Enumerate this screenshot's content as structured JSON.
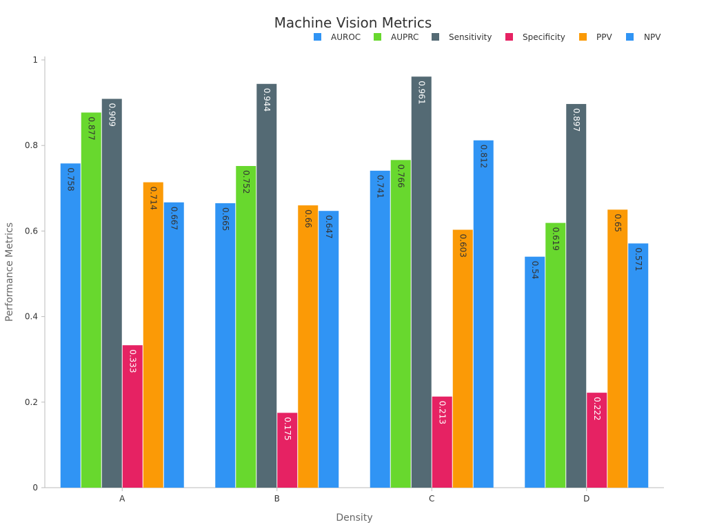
{
  "chart_data": {
    "type": "bar",
    "title": "Machine Vision Metrics",
    "xlabel": "Density",
    "ylabel": "Performance Metrics",
    "categories": [
      "A",
      "B",
      "C",
      "D"
    ],
    "ylim": [
      0,
      1
    ],
    "yticks": [
      0,
      0.2,
      0.4,
      0.6,
      0.8,
      1
    ],
    "ytick_labels": [
      "0",
      "0.2",
      "0.4",
      "0.6",
      "0.8",
      "1"
    ],
    "grid": false,
    "legend_position": "top-right",
    "series": [
      {
        "name": "AUROC",
        "color": "#3094f4",
        "label_color": "#333333",
        "values": [
          0.758,
          0.665,
          0.741,
          0.54
        ],
        "labels": [
          "0.758",
          "0.665",
          "0.741",
          "0.54"
        ]
      },
      {
        "name": "AUPRC",
        "color": "#68d82e",
        "label_color": "#333333",
        "values": [
          0.877,
          0.752,
          0.766,
          0.619
        ],
        "labels": [
          "0.877",
          "0.752",
          "0.766",
          "0.619"
        ]
      },
      {
        "name": "Sensitivity",
        "color": "#546a74",
        "label_color": "#ffffff",
        "values": [
          0.909,
          0.944,
          0.961,
          0.897
        ],
        "labels": [
          "0.909",
          "0.944",
          "0.961",
          "0.897"
        ]
      },
      {
        "name": "Specificity",
        "color": "#e62263",
        "label_color": "#ffffff",
        "values": [
          0.333,
          0.175,
          0.213,
          0.222
        ],
        "labels": [
          "0.333",
          "0.175",
          "0.213",
          "0.222"
        ]
      },
      {
        "name": "PPV",
        "color": "#fb9a06",
        "label_color": "#333333",
        "values": [
          0.714,
          0.66,
          0.603,
          0.65
        ],
        "labels": [
          "0.714",
          "0.66",
          "0.603",
          "0.65"
        ]
      },
      {
        "name": "NPV",
        "color": "#3094f4",
        "label_color": "#333333",
        "values": [
          0.667,
          0.647,
          0.812,
          0.571
        ],
        "labels": [
          "0.667",
          "0.647",
          "0.812",
          "0.571"
        ]
      }
    ]
  }
}
